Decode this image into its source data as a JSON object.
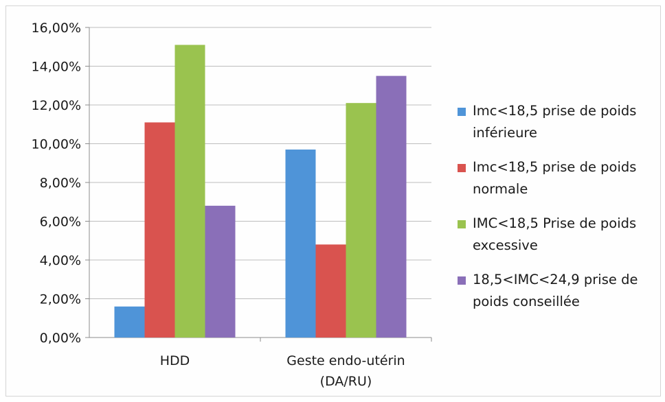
{
  "chart_data": {
    "type": "bar",
    "categories": [
      "HDD",
      "Geste endo-utérin\n(DA/RU)"
    ],
    "series": [
      {
        "name": "Imc<18,5 prise de poids inférieure",
        "values": [
          1.6,
          9.7
        ],
        "color": "#4f94d8"
      },
      {
        "name": "Imc<18,5 prise de poids normale",
        "values": [
          11.1,
          4.8
        ],
        "color": "#d9534f"
      },
      {
        "name": "IMC<18,5 Prise de poids excessive",
        "values": [
          15.1,
          12.1
        ],
        "color": "#9ac34f"
      },
      {
        "name": "18,5<IMC<24,9 prise de poids conseillée",
        "values": [
          6.8,
          13.5
        ],
        "color": "#8a6fb8"
      }
    ],
    "legend_lines": [
      [
        "Imc<18,5 prise de poids",
        "inférieure"
      ],
      [
        "Imc<18,5 prise de poids",
        "normale"
      ],
      [
        "IMC<18,5 Prise de poids",
        "excessive"
      ],
      [
        "18,5<IMC<24,9 prise de",
        "poids conseillée"
      ]
    ],
    "y_ticks": [
      "0,00%",
      "2,00%",
      "4,00%",
      "6,00%",
      "8,00%",
      "10,00%",
      "12,00%",
      "14,00%",
      "16,00%"
    ],
    "ylim": [
      0,
      16
    ],
    "grid": true,
    "legend_position": "right",
    "title": "",
    "xlabel": "",
    "ylabel": ""
  }
}
